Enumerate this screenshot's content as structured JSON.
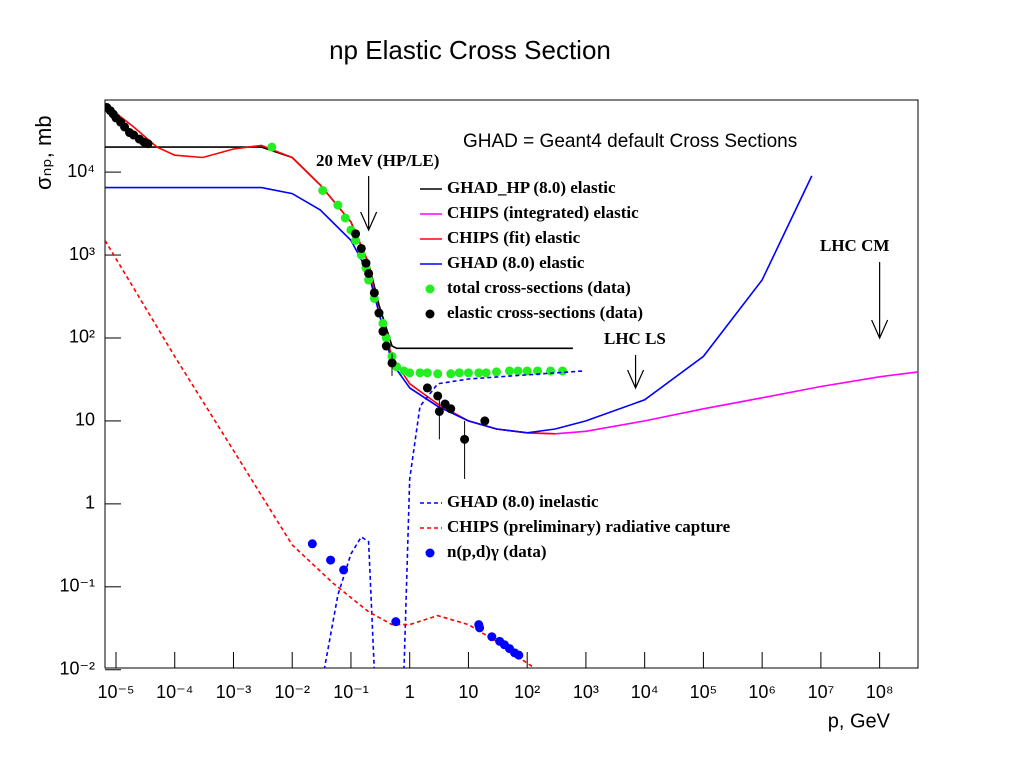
{
  "chart_data": {
    "type": "line",
    "title": "np Elastic Cross Section",
    "x_label": "p, GeV",
    "y_label": "σₙₚ, mb",
    "log_x": true,
    "log_y": true,
    "xlim": [
      6.5e-06,
      450000000
    ],
    "ylim": [
      0.0105,
      74000
    ],
    "xticks": [
      {
        "value": 1e-05,
        "label": "10⁻⁵"
      },
      {
        "value": 0.0001,
        "label": "10⁻⁴"
      },
      {
        "value": 0.001,
        "label": "10⁻³"
      },
      {
        "value": 0.01,
        "label": "10⁻²"
      },
      {
        "value": 0.1,
        "label": "10⁻¹"
      },
      1,
      10,
      {
        "value": 100,
        "label": "10²"
      },
      {
        "value": 1000,
        "label": "10³"
      },
      {
        "value": 10000,
        "label": "10⁴"
      },
      {
        "value": 100000,
        "label": "10⁵"
      },
      {
        "value": 1000000,
        "label": "10⁶"
      },
      {
        "value": 10000000,
        "label": "10⁷"
      },
      {
        "value": 100000000,
        "label": "10⁸"
      }
    ],
    "yticks": [
      {
        "value": 0.01,
        "label": "10⁻²"
      },
      {
        "value": 0.1,
        "label": "10⁻¹"
      },
      1,
      10,
      {
        "value": 100,
        "label": "10²"
      },
      {
        "value": 1000,
        "label": "10³"
      },
      {
        "value": 10000,
        "label": "10⁴"
      }
    ],
    "annotations": [
      {
        "text": "GHAD = Geant4 default Cross Sections"
      },
      {
        "text": "20 MeV (HP/LE)",
        "x": 0.2
      },
      {
        "text": "LHC CM",
        "x": 100000000
      },
      {
        "text": "LHC LS",
        "x": 7000
      }
    ],
    "series": [
      {
        "name": "GHAD_HP (8.0) elastic",
        "color": "#000000",
        "style": "line",
        "x": [
          6.5e-06,
          0.003,
          0.01,
          0.03,
          0.1,
          0.2,
          0.3,
          0.5,
          0.6,
          600
        ],
        "values": [
          20000,
          20000,
          15000,
          7000,
          2500,
          800,
          250,
          80,
          75,
          75
        ]
      },
      {
        "name": "CHIPS (integrated) elastic",
        "color": "#ff00ff",
        "style": "line",
        "x": [
          1,
          3,
          10,
          30,
          100,
          300,
          1000,
          10000,
          100000,
          1000000,
          10000000,
          100000000,
          450000000
        ],
        "values": [
          25,
          15,
          10,
          8,
          7.2,
          7,
          7.5,
          10,
          14,
          19,
          26,
          34,
          39
        ]
      },
      {
        "name": "CHIPS (fit) elastic",
        "color": "#ff0000",
        "style": "line",
        "x": [
          6.5e-06,
          2e-05,
          5e-05,
          0.0001,
          0.0003,
          0.001,
          0.003,
          0.01,
          0.03,
          0.1,
          0.2,
          0.3,
          0.5,
          1,
          3,
          10,
          30,
          100,
          300
        ],
        "values": [
          65000,
          35000,
          20000,
          16000,
          15000,
          19000,
          21000,
          15000,
          7000,
          2500,
          800,
          200,
          60,
          28,
          16,
          10,
          8,
          7.2,
          7
        ]
      },
      {
        "name": "GHAD (8.0) elastic",
        "color": "#0000ff",
        "style": "line",
        "x": [
          6.5e-06,
          0.003,
          0.01,
          0.03,
          0.1,
          0.2,
          0.3,
          0.5,
          1,
          3,
          10,
          30,
          100,
          300,
          1000,
          10000,
          100000,
          1000000,
          7000000
        ],
        "values": [
          6500,
          6500,
          5500,
          3500,
          1500,
          600,
          200,
          50,
          25,
          15,
          10,
          8,
          7.2,
          8,
          10,
          18,
          60,
          500,
          9000
        ]
      },
      {
        "name": "total cross-sections (data)",
        "color": "#22ee22",
        "style": "points",
        "x": [
          0.0045,
          0.033,
          0.06,
          0.08,
          0.1,
          0.12,
          0.15,
          0.18,
          0.2,
          0.25,
          0.3,
          0.35,
          0.4,
          0.5,
          0.6,
          0.8,
          1,
          1.5,
          2,
          3,
          5,
          7,
          10,
          15,
          20,
          30,
          50,
          70,
          100,
          150,
          250,
          400
        ],
        "values": [
          20000,
          6000,
          4000,
          2800,
          2000,
          1500,
          1000,
          700,
          500,
          300,
          200,
          150,
          100,
          60,
          45,
          40,
          38,
          38,
          38,
          37,
          37,
          38,
          38,
          38,
          38,
          39,
          40,
          40,
          40,
          40,
          40,
          40
        ]
      },
      {
        "name": "elastic cross-sections (data)",
        "color": "#000000",
        "style": "points",
        "x": [
          7e-06,
          8e-06,
          9e-06,
          1e-05,
          1.2e-05,
          1.4e-05,
          1.7e-05,
          2e-05,
          2.5e-05,
          3e-05,
          3.5e-05,
          0.12,
          0.15,
          0.18,
          0.2,
          0.25,
          0.3,
          0.35,
          0.4,
          0.5,
          2,
          3,
          3.2,
          4,
          5,
          8.6,
          19
        ],
        "values": [
          60000,
          55000,
          50000,
          45000,
          40000,
          35000,
          30000,
          28000,
          25000,
          23000,
          22000,
          1800,
          1200,
          800,
          600,
          350,
          200,
          120,
          80,
          50,
          25,
          20,
          13,
          16,
          14,
          6,
          10
        ],
        "errors": [
          null,
          null,
          null,
          null,
          null,
          null,
          null,
          null,
          null,
          null,
          null,
          null,
          null,
          null,
          null,
          null,
          null,
          null,
          null,
          15,
          null,
          null,
          7,
          null,
          null,
          4,
          null
        ]
      },
      {
        "name": "GHAD (8.0) inelastic",
        "color": "#0000ff",
        "style": "dashed",
        "x": [
          0.035,
          0.06,
          0.1,
          0.15,
          0.2,
          0.25,
          null,
          0.8,
          1,
          1.5,
          3,
          10,
          100,
          900
        ],
        "values": [
          0.01,
          0.08,
          0.25,
          0.4,
          0.35,
          0.01,
          null,
          0.01,
          2,
          15,
          28,
          32,
          36,
          40
        ]
      },
      {
        "name": "CHIPS (preliminary) radiative capture",
        "color": "#ff0000",
        "style": "dashed",
        "x": [
          6.5e-06,
          0.0001,
          0.001,
          0.01,
          0.05,
          0.2,
          0.5,
          1,
          3,
          10,
          30,
          100,
          150
        ],
        "values": [
          1500,
          60,
          4.4,
          0.32,
          0.11,
          0.05,
          0.035,
          0.035,
          0.045,
          0.035,
          0.022,
          0.012,
          0.01
        ]
      },
      {
        "name": "n(p,d)γ (data)",
        "color": "#0000ff",
        "style": "points",
        "x": [
          0.022,
          0.045,
          0.075,
          0.58,
          15,
          15.5,
          25,
          34,
          41,
          50,
          61,
          72
        ],
        "values": [
          0.33,
          0.21,
          0.16,
          0.038,
          0.035,
          0.032,
          0.025,
          0.022,
          0.02,
          0.018,
          0.016,
          0.015
        ]
      }
    ]
  }
}
